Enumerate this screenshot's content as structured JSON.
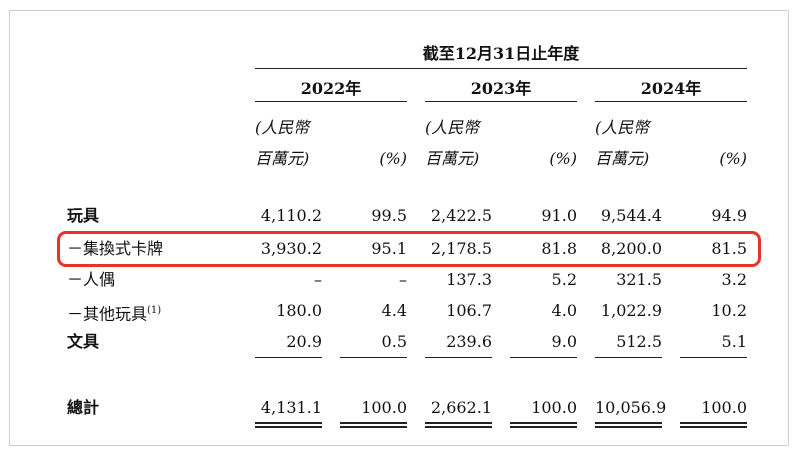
{
  "header": {
    "period": "截至12月31日止年度",
    "years": [
      "2022年",
      "2023年",
      "2024年"
    ],
    "unit_line1": "(人民幣",
    "unit_line2": "百萬元)",
    "pct_label": "(%)"
  },
  "rows": [
    {
      "label": "玩具",
      "bold": true,
      "v": [
        "4,110.2",
        "99.5",
        "2,422.5",
        "91.0",
        "9,544.4",
        "94.9"
      ]
    },
    {
      "label": "－集換式卡牌",
      "bold": false,
      "v": [
        "3,930.2",
        "95.1",
        "2,178.5",
        "81.8",
        "8,200.0",
        "81.5"
      ]
    },
    {
      "label": "－人偶",
      "bold": false,
      "v": [
        "–",
        "–",
        "137.3",
        "5.2",
        "321.5",
        "3.2"
      ]
    },
    {
      "label": "－其他玩具",
      "sup": "(1)",
      "bold": false,
      "v": [
        "180.0",
        "4.4",
        "106.7",
        "4.0",
        "1,022.9",
        "10.2"
      ]
    },
    {
      "label": "文具",
      "bold": true,
      "v": [
        "20.9",
        "0.5",
        "239.6",
        "9.0",
        "512.5",
        "5.1"
      ]
    }
  ],
  "total": {
    "label": "總計",
    "v": [
      "4,131.1",
      "100.0",
      "2,662.1",
      "100.0",
      "10,056.9",
      "100.0"
    ]
  },
  "highlight_color": "#e8312a"
}
